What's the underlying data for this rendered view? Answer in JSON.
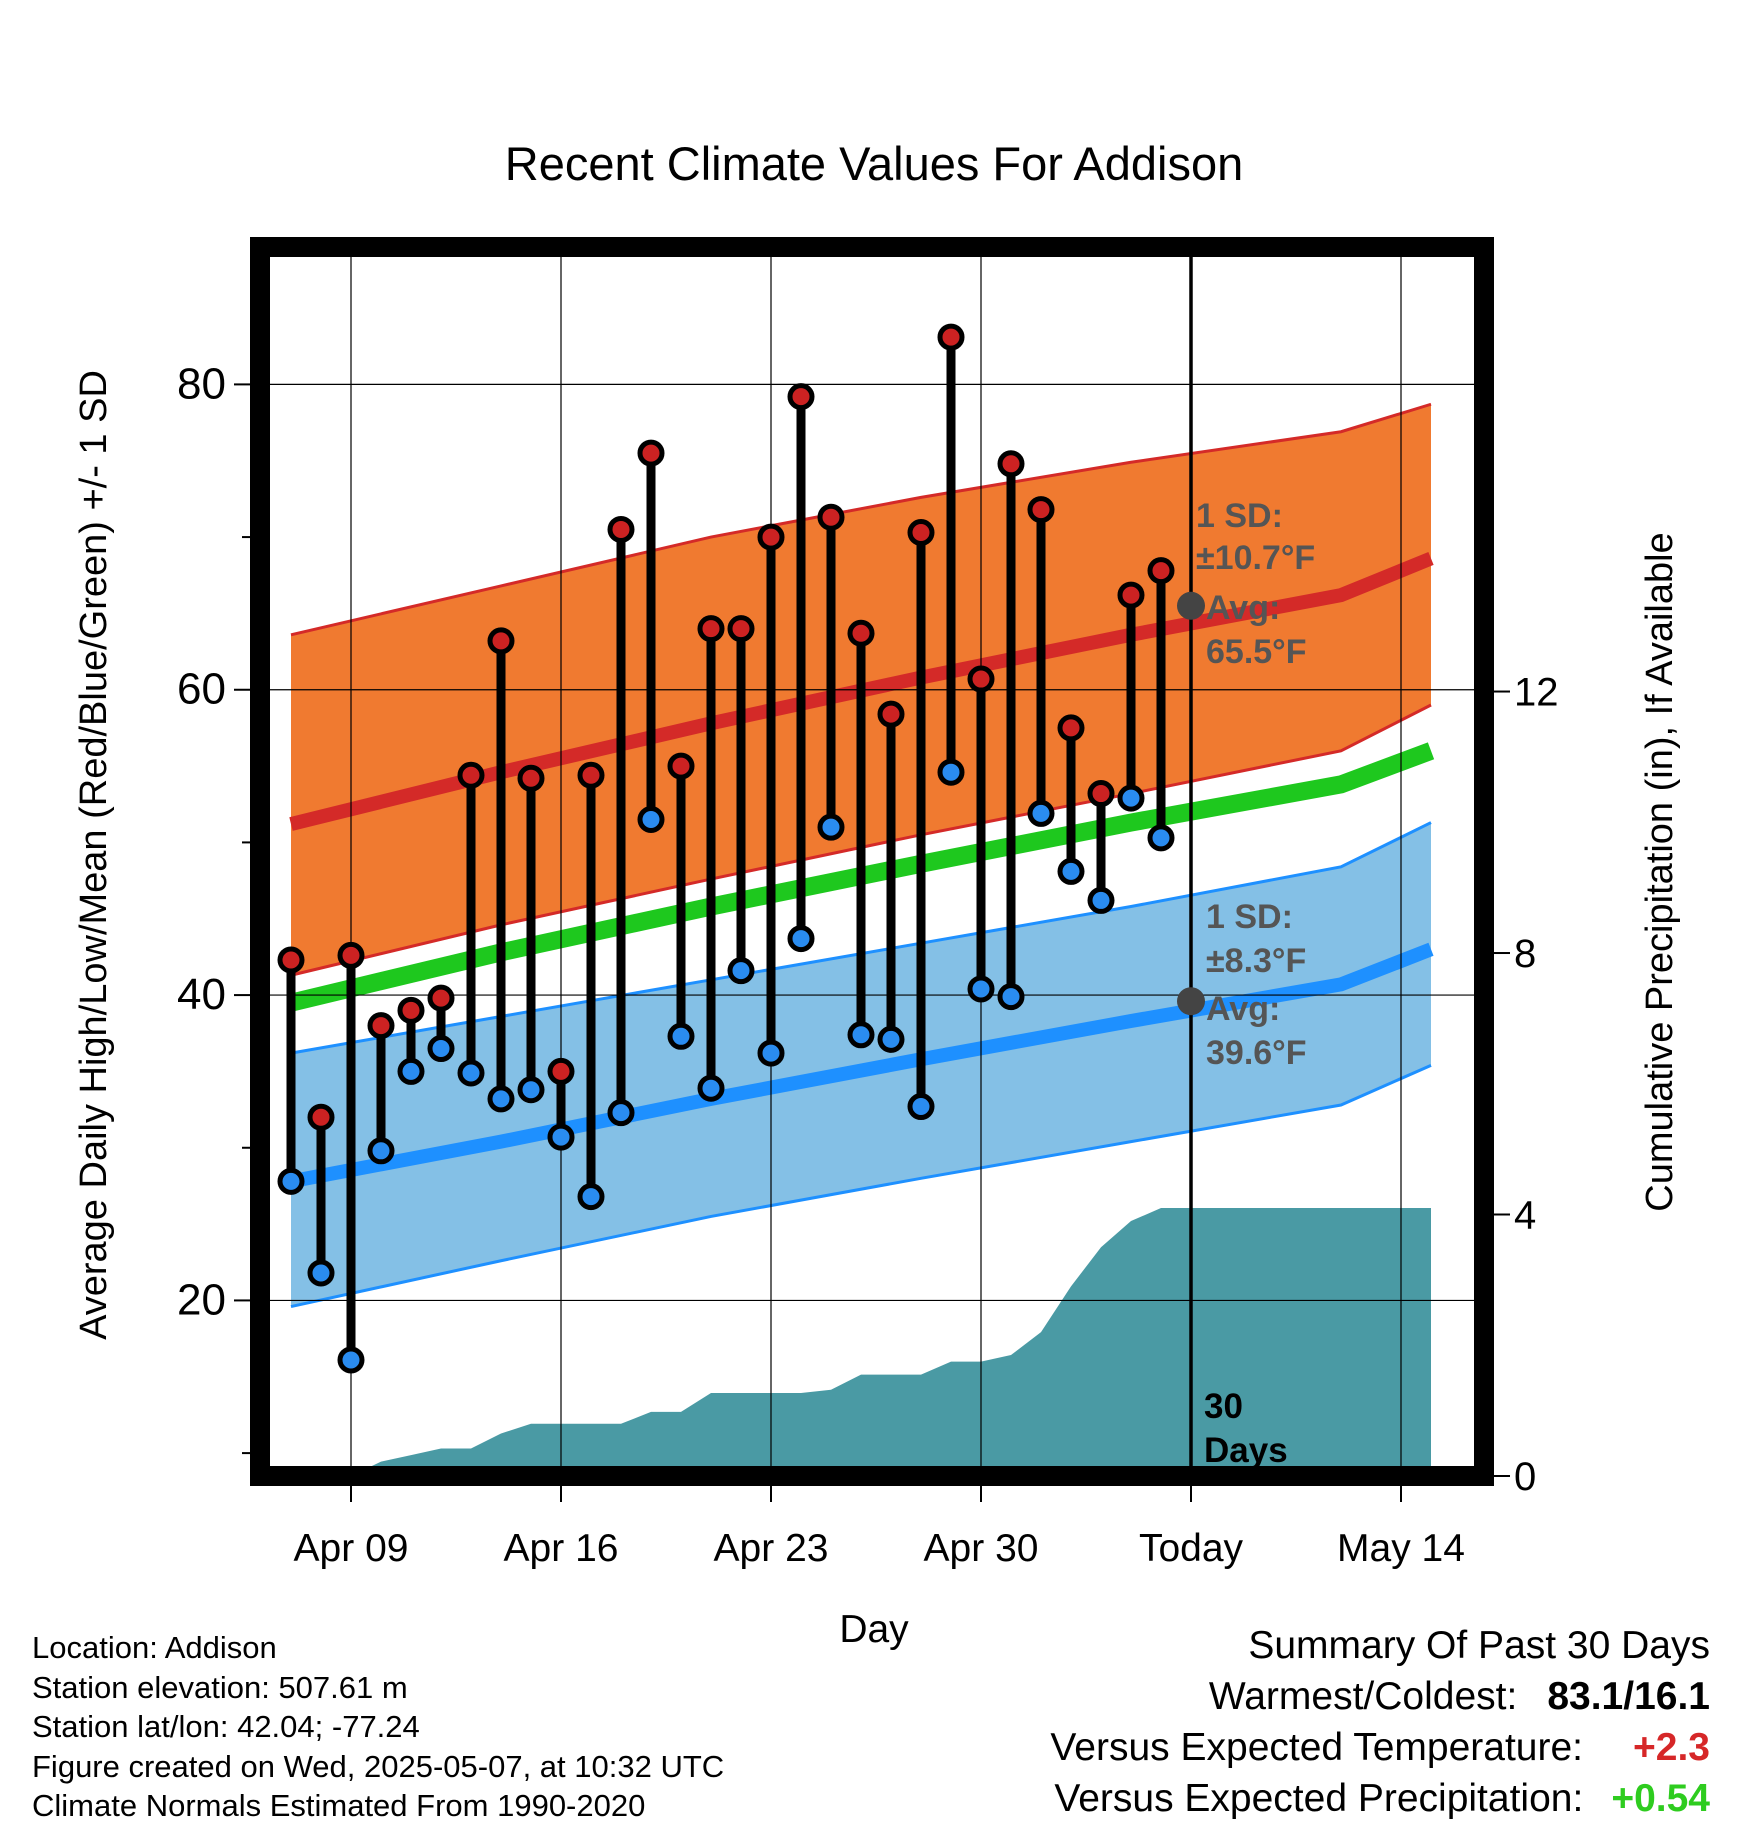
{
  "title": "Recent Climate Values For Addison",
  "ylabel_left": "Average Daily High/Low/Mean (Red/Blue/Green) +/- 1 SD",
  "ylabel_right": "Cumulative Precipitation (in), If Available",
  "xlabel": "Day",
  "annotations": {
    "high_sd": "1 SD:",
    "high_sd_value": "±10.7°F",
    "high_avg": "Avg:",
    "high_avg_value": "65.5°F",
    "low_sd": "1 SD:",
    "low_sd_value": "±8.3°F",
    "low_avg": "Avg:",
    "low_avg_value": "39.6°F",
    "days_line1": "30",
    "days_line2": "Days"
  },
  "footer": {
    "location": "Location: Addison",
    "elevation": "Station elevation: 507.61 m",
    "latlon": "Station lat/lon: 42.04; -77.24",
    "created": "Figure created on Wed, 2025-05-07, at 10:32 UTC",
    "normals": "Climate Normals Estimated From 1990-2020"
  },
  "summary": {
    "heading": "Summary Of Past 30 Days",
    "warmest_label": "Warmest/Coldest:",
    "warmest_value": "83.1/16.1",
    "temp_label": "Versus Expected Temperature:",
    "temp_value": "+2.3",
    "precip_label": "Versus Expected Precipitation:",
    "precip_value": "+0.54"
  },
  "colors": {
    "high_band": "#f07a30",
    "high_line": "#d42a28",
    "low_band": "#84c0e6",
    "low_line": "#1e90ff",
    "mean_line": "#1ec81e",
    "precip": "#4a9aa4",
    "high_dot": "#cc2222",
    "low_dot": "#2a8cf0",
    "annotation": "#555555"
  },
  "chart_data": {
    "type": "line",
    "x_axis": {
      "ticks": [
        "Apr 09",
        "Apr 16",
        "Apr 23",
        "Apr 30",
        "Today",
        "May 14"
      ],
      "range": [
        "Apr 07",
        "May 15"
      ]
    },
    "y_left": {
      "range": [
        8.5,
        89
      ],
      "ticks": [
        20,
        40,
        60,
        80
      ],
      "minor_ticks": [
        10,
        30,
        50,
        70
      ]
    },
    "y_right": {
      "range": [
        0,
        18.8
      ],
      "ticks": [
        0,
        4,
        8,
        12
      ]
    },
    "grid": true,
    "normals": {
      "x": [
        "Apr 07",
        "Apr 14",
        "Apr 21",
        "Apr 28",
        "May 05",
        "May 12",
        "May 15"
      ],
      "high_mean": [
        51.2,
        54.6,
        57.8,
        60.8,
        63.6,
        66.2,
        68.6
      ],
      "high_upper": [
        63.6,
        66.8,
        70.0,
        72.6,
        74.9,
        76.9,
        78.7
      ],
      "high_lower": [
        41.3,
        44.6,
        47.6,
        50.5,
        53.2,
        56.0,
        59.0
      ],
      "mean": [
        39.5,
        42.8,
        45.8,
        48.6,
        51.3,
        53.8,
        56.0
      ],
      "low_mean": [
        27.8,
        30.4,
        33.2,
        35.8,
        38.3,
        40.7,
        43.0
      ],
      "low_upper": [
        36.2,
        38.6,
        41.0,
        43.4,
        45.8,
        48.4,
        51.3
      ],
      "low_lower": [
        19.6,
        22.6,
        25.5,
        28.0,
        30.4,
        32.8,
        35.4
      ]
    },
    "days": [
      "Apr 07",
      "Apr 08",
      "Apr 09",
      "Apr 10",
      "Apr 11",
      "Apr 12",
      "Apr 13",
      "Apr 14",
      "Apr 15",
      "Apr 16",
      "Apr 17",
      "Apr 18",
      "Apr 19",
      "Apr 20",
      "Apr 21",
      "Apr 22",
      "Apr 23",
      "Apr 24",
      "Apr 25",
      "Apr 26",
      "Apr 27",
      "Apr 28",
      "Apr 29",
      "Apr 30",
      "May 01",
      "May 02",
      "May 03",
      "May 04",
      "May 05",
      "May 06"
    ],
    "high": [
      42.3,
      32.0,
      42.6,
      38.0,
      39.0,
      39.8,
      54.4,
      63.2,
      54.2,
      35.0,
      54.4,
      70.5,
      75.5,
      55.0,
      64.0,
      64.0,
      70.0,
      79.2,
      71.3,
      63.7,
      58.4,
      70.3,
      83.1,
      60.7,
      74.8,
      71.8,
      57.5,
      53.2,
      66.2,
      67.8
    ],
    "low": [
      27.8,
      21.8,
      16.1,
      29.8,
      35.0,
      36.5,
      34.9,
      33.2,
      33.8,
      30.7,
      26.8,
      32.3,
      51.5,
      37.3,
      33.9,
      41.6,
      36.2,
      43.7,
      51.0,
      37.4,
      37.1,
      32.7,
      54.6,
      40.4,
      39.9,
      51.9,
      48.1,
      46.2,
      52.9,
      50.3
    ],
    "precip_cumulative": {
      "x": [
        "Apr 08",
        "Apr 09",
        "Apr 10",
        "Apr 11",
        "Apr 12",
        "Apr 13",
        "Apr 14",
        "Apr 15",
        "Apr 16",
        "Apr 17",
        "Apr 18",
        "Apr 19",
        "Apr 20",
        "Apr 21",
        "Apr 22",
        "Apr 23",
        "Apr 24",
        "Apr 25",
        "Apr 26",
        "Apr 27",
        "Apr 28",
        "Apr 29",
        "Apr 30",
        "May 01",
        "May 02",
        "May 03",
        "May 04",
        "May 05",
        "May 06",
        "May 15"
      ],
      "values": [
        0.0,
        0.0,
        0.22,
        0.32,
        0.42,
        0.42,
        0.65,
        0.8,
        0.8,
        0.8,
        0.8,
        0.98,
        0.98,
        1.27,
        1.27,
        1.27,
        1.27,
        1.32,
        1.55,
        1.55,
        1.55,
        1.75,
        1.75,
        1.85,
        2.2,
        2.9,
        3.5,
        3.9,
        4.1,
        4.1
      ]
    }
  }
}
